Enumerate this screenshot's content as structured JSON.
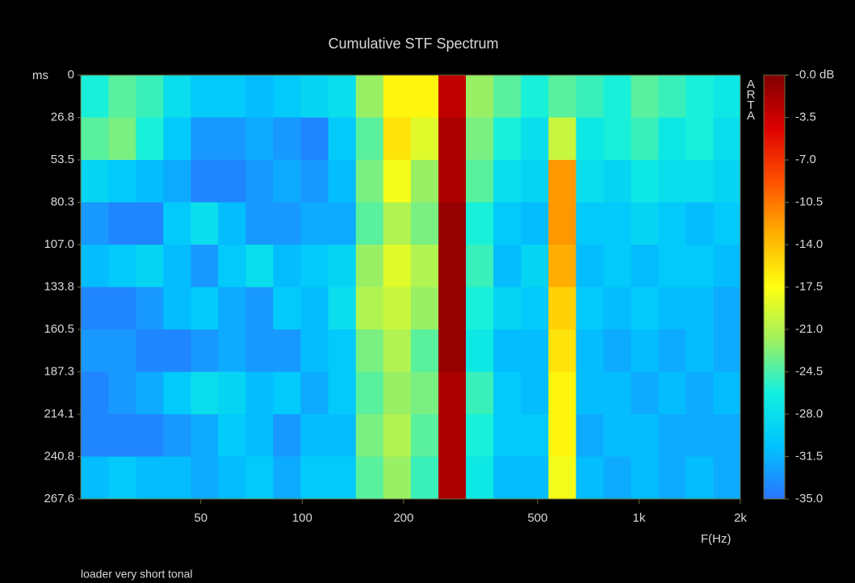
{
  "chart_data": {
    "type": "heatmap",
    "title": "Cumulative STF Spectrum",
    "x_label": "F(Hz)",
    "y_label": "ms",
    "footer": "loader very short tonal",
    "watermark": "ARTA",
    "x_log": true,
    "y_reversed": true,
    "xlim": [
      22,
      2000
    ],
    "ylim": [
      0,
      267.6
    ],
    "xticks": [
      50,
      100,
      200,
      500,
      {
        "value": 1000,
        "label": "1k"
      },
      {
        "value": 2000,
        "label": "2k"
      }
    ],
    "yticks": [
      0,
      26.8,
      53.5,
      80.3,
      {
        "value": 107,
        "label": "107.0"
      },
      133.8,
      160.5,
      187.3,
      214.1,
      240.8,
      267.6
    ],
    "x_edges": [
      22,
      26.6,
      32.1,
      38.7,
      46.7,
      56.3,
      68,
      82,
      99,
      119.5,
      144.3,
      174.1,
      210.2,
      253.7,
      306.2,
      369.6,
      446.1,
      538.5,
      650,
      784.5,
      947,
      1143,
      1379,
      1665,
      2000
    ],
    "colorbar_lim": [
      -35,
      0
    ],
    "colorbar_ticks": [
      {
        "value": 0,
        "label": "-0.0 dB"
      },
      -3.5,
      {
        "value": -7,
        "label": "-7.0"
      },
      -10.5,
      {
        "value": -14,
        "label": "-14.0"
      },
      -17.5,
      {
        "value": -21,
        "label": "-21.0"
      },
      -24.5,
      {
        "value": -28,
        "label": "-28.0"
      },
      -31.5,
      {
        "value": -35,
        "label": "-35.0"
      }
    ],
    "colormap": [
      "#2a74ff",
      "#00c4ff",
      "#10f0e0",
      "#9ef060",
      "#ffff10",
      "#ffb000",
      "#ff5000",
      "#dd0000",
      "#800000"
    ],
    "z": [
      [
        -26,
        -24,
        -25,
        -28,
        -30,
        -30,
        -31,
        -30,
        -29,
        -28,
        -22,
        -17,
        -17,
        -3,
        -22,
        -24,
        -26,
        -24,
        -25,
        -26,
        -24,
        -25,
        -26,
        -27
      ],
      [
        -24,
        -23,
        -26,
        -30,
        -33,
        -33,
        -32,
        -33,
        -34,
        -30,
        -24,
        -16,
        -19,
        -2,
        -23,
        -26,
        -28,
        -20,
        -27,
        -26,
        -25,
        -27,
        -26,
        -28
      ],
      [
        -29,
        -30,
        -31,
        -32,
        -34,
        -34,
        -33,
        -32,
        -33,
        -31,
        -23,
        -18,
        -22,
        -2,
        -24,
        -28,
        -29,
        -12,
        -28,
        -29,
        -27,
        -28,
        -28,
        -29
      ],
      [
        -33,
        -34,
        -34,
        -30,
        -28,
        -31,
        -33,
        -33,
        -32,
        -32,
        -24,
        -21,
        -23,
        -1,
        -26,
        -30,
        -31,
        -12,
        -30,
        -30,
        -29,
        -30,
        -31,
        -30
      ],
      [
        -31,
        -30,
        -29,
        -31,
        -33,
        -30,
        -28,
        -31,
        -30,
        -29,
        -22,
        -19,
        -21,
        -1,
        -25,
        -31,
        -29,
        -13,
        -31,
        -30,
        -31,
        -30,
        -30,
        -31
      ],
      [
        -34,
        -34,
        -33,
        -31,
        -30,
        -32,
        -33,
        -30,
        -31,
        -28,
        -21,
        -20,
        -22,
        -1,
        -26,
        -29,
        -30,
        -15,
        -30,
        -31,
        -30,
        -31,
        -31,
        -32
      ],
      [
        -33,
        -33,
        -34,
        -34,
        -33,
        -32,
        -33,
        -33,
        -31,
        -30,
        -23,
        -21,
        -24,
        -1,
        -27,
        -31,
        -31,
        -16,
        -31,
        -32,
        -31,
        -32,
        -31,
        -32
      ],
      [
        -34,
        -33,
        -32,
        -30,
        -28,
        -29,
        -31,
        -30,
        -32,
        -30,
        -24,
        -22,
        -23,
        -2,
        -25,
        -30,
        -31,
        -17,
        -31,
        -31,
        -32,
        -31,
        -32,
        -31
      ],
      [
        -34,
        -34,
        -34,
        -33,
        -32,
        -30,
        -31,
        -33,
        -31,
        -31,
        -23,
        -21,
        -24,
        -2,
        -26,
        -30,
        -30,
        -17,
        -32,
        -31,
        -31,
        -32,
        -32,
        -32
      ],
      [
        -31,
        -30,
        -31,
        -31,
        -32,
        -31,
        -30,
        -32,
        -30,
        -30,
        -24,
        -22,
        -25,
        -2,
        -27,
        -31,
        -31,
        -18,
        -31,
        -32,
        -31,
        -32,
        -31,
        -32
      ]
    ]
  }
}
